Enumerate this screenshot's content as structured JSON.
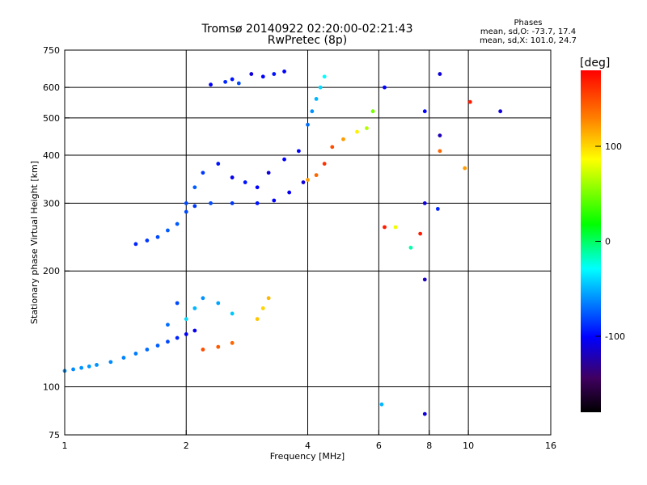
{
  "chart_data": {
    "type": "scatter",
    "title": "Tromsø 20140922 02:20:00-02:21:43",
    "subtitle": "RwPretec (8p)",
    "stats": {
      "heading": "Phases",
      "line_o": "mean, sd,O: -73.7, 17.4",
      "line_x": "mean, sd,X: 101.0, 24.7"
    },
    "xlabel": "Frequency [MHz]",
    "ylabel": "Stationary phase Virtual Height [km]",
    "x_scale": "log",
    "y_scale": "log",
    "xlim": [
      1,
      16
    ],
    "ylim": [
      75,
      750
    ],
    "x_ticks": [
      1,
      2,
      4,
      6,
      8,
      10,
      16
    ],
    "x_tick_labels": [
      "1",
      "2",
      "4",
      "6",
      "8",
      "10",
      "16"
    ],
    "y_ticks": [
      75,
      100,
      200,
      300,
      400,
      500,
      600,
      750
    ],
    "y_tick_labels": [
      "75",
      "100",
      "200",
      "300",
      "400",
      "500",
      "600",
      "750"
    ],
    "grid_x": [
      2,
      4,
      6,
      8,
      10
    ],
    "grid_y": [
      100,
      200,
      300,
      400,
      500,
      600
    ],
    "grid": true,
    "colorbar": {
      "label": "[deg]",
      "range": [
        -180,
        180
      ],
      "ticks": [
        100,
        0,
        -100
      ],
      "tick_labels": [
        "100",
        "0",
        "-100"
      ],
      "colors": [
        "#000000",
        "#400060",
        "#0000ff",
        "#00ffff",
        "#00ff00",
        "#ffff00",
        "#ff8000",
        "#ff0000"
      ]
    },
    "series": [
      {
        "values": [
          [
            1.0,
            110,
            -60
          ],
          [
            1.05,
            111,
            -62
          ],
          [
            1.1,
            112,
            -60
          ],
          [
            1.15,
            113,
            -58
          ],
          [
            1.2,
            114,
            -60
          ],
          [
            1.3,
            116,
            -62
          ],
          [
            1.4,
            119,
            -64
          ],
          [
            1.5,
            122,
            -66
          ],
          [
            1.6,
            125,
            -70
          ],
          [
            1.7,
            128,
            -74
          ],
          [
            1.8,
            131,
            -80
          ],
          [
            1.9,
            134,
            -90
          ],
          [
            2.0,
            137,
            -100
          ],
          [
            2.1,
            140,
            -105
          ]
        ]
      },
      {
        "values": [
          [
            1.5,
            235,
            -90
          ],
          [
            1.6,
            240,
            -85
          ],
          [
            1.7,
            245,
            -80
          ],
          [
            1.8,
            255,
            -75
          ],
          [
            1.9,
            265,
            -75
          ],
          [
            2.0,
            285,
            -80
          ],
          [
            2.1,
            295,
            -85
          ],
          [
            2.3,
            300,
            -80
          ],
          [
            2.6,
            300,
            -85
          ],
          [
            3.0,
            300,
            -95
          ],
          [
            3.3,
            305,
            -100
          ],
          [
            3.6,
            320,
            -105
          ],
          [
            3.9,
            340,
            -110
          ]
        ]
      },
      {
        "values": [
          [
            2.0,
            300,
            -80
          ],
          [
            2.1,
            330,
            -75
          ],
          [
            2.2,
            360,
            -85
          ],
          [
            2.4,
            380,
            -95
          ],
          [
            2.6,
            350,
            -105
          ],
          [
            2.8,
            340,
            -95
          ],
          [
            3.0,
            330,
            -100
          ],
          [
            3.2,
            360,
            -110
          ],
          [
            3.5,
            390,
            -100
          ],
          [
            3.8,
            410,
            -100
          ]
        ]
      },
      {
        "values": [
          [
            2.3,
            610,
            -100
          ],
          [
            2.5,
            620,
            -90
          ],
          [
            2.6,
            630,
            -95
          ],
          [
            2.7,
            615,
            -80
          ],
          [
            2.9,
            650,
            -110
          ],
          [
            3.1,
            640,
            -100
          ],
          [
            3.3,
            650,
            -95
          ],
          [
            3.5,
            660,
            -100
          ]
        ]
      },
      {
        "values": [
          [
            4.0,
            345,
            120
          ],
          [
            4.2,
            355,
            140
          ],
          [
            4.4,
            380,
            160
          ],
          [
            4.6,
            420,
            150
          ],
          [
            4.9,
            440,
            120
          ],
          [
            5.3,
            460,
            90
          ],
          [
            5.6,
            470,
            60
          ],
          [
            5.8,
            520,
            40
          ]
        ]
      },
      {
        "values": [
          [
            4.0,
            480,
            -70
          ],
          [
            4.1,
            520,
            -60
          ],
          [
            4.2,
            560,
            -50
          ],
          [
            4.3,
            600,
            -40
          ],
          [
            4.4,
            640,
            -30
          ]
        ]
      },
      {
        "values": [
          [
            2.0,
            150,
            -40
          ],
          [
            2.1,
            160,
            -50
          ],
          [
            2.2,
            170,
            -60
          ],
          [
            2.4,
            165,
            -55
          ],
          [
            2.6,
            155,
            -45
          ],
          [
            1.8,
            145,
            -70
          ],
          [
            1.9,
            165,
            -80
          ]
        ]
      },
      {
        "values": [
          [
            2.2,
            125,
            150
          ],
          [
            2.4,
            127,
            145
          ],
          [
            2.6,
            130,
            140
          ],
          [
            3.0,
            150,
            105
          ],
          [
            3.1,
            160,
            100
          ],
          [
            3.2,
            170,
            110
          ]
        ]
      },
      {
        "values": [
          [
            6.2,
            600,
            -100
          ],
          [
            7.8,
            520,
            -100
          ],
          [
            8.5,
            650,
            -110
          ],
          [
            8.5,
            450,
            -120
          ],
          [
            7.8,
            300,
            -110
          ],
          [
            8.4,
            290,
            -90
          ],
          [
            7.6,
            250,
            170
          ],
          [
            7.2,
            230,
            -20
          ],
          [
            6.6,
            260,
            80
          ],
          [
            7.8,
            190,
            -120
          ],
          [
            9.8,
            370,
            120
          ],
          [
            10.1,
            550,
            170
          ],
          [
            12.0,
            520,
            -110
          ],
          [
            6.2,
            260,
            170
          ],
          [
            8.5,
            410,
            140
          ],
          [
            6.1,
            90,
            -50
          ],
          [
            7.8,
            85,
            -110
          ]
        ]
      }
    ]
  }
}
